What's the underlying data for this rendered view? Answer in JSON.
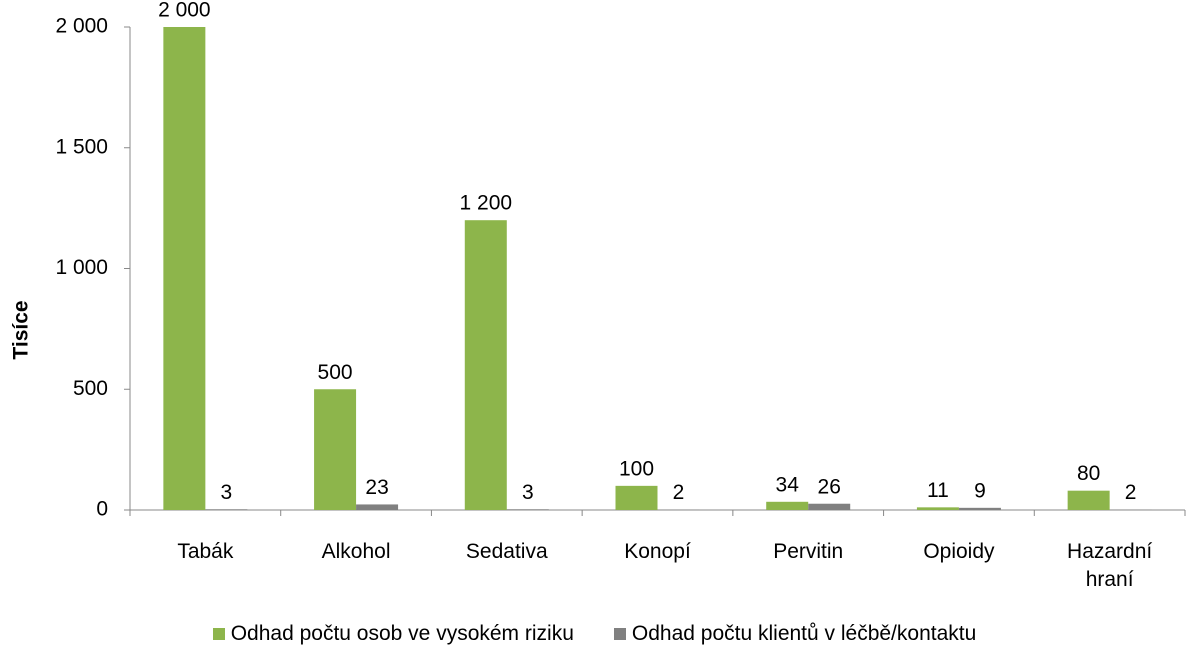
{
  "chart_data": {
    "type": "bar",
    "y_label": "Tisíce",
    "categories": [
      "Tabák",
      "Alkohol",
      "Sedativa",
      "Konopí",
      "Pervitin",
      "Opioidy",
      "Hazardní hraní"
    ],
    "series": [
      {
        "name": "Odhad počtu osob ve vysokém riziku",
        "color": "#8db54b",
        "values": [
          2000,
          500,
          1200,
          100,
          34,
          11,
          80
        ],
        "value_labels": [
          "2 000",
          "500",
          "1 200",
          "100",
          "34",
          "11",
          "80"
        ]
      },
      {
        "name": "Odhad počtu klientů v léčbě/kontaktu",
        "color": "#808080",
        "values": [
          3,
          23,
          3,
          2,
          26,
          9,
          2
        ]
      }
    ],
    "ylim": [
      0,
      2000
    ],
    "yticks": [
      0,
      500,
      {
        "value": 1000,
        "label": "1 000"
      },
      {
        "value": 1500,
        "label": "1 500"
      },
      {
        "value": 2000,
        "label": "2 000"
      }
    ],
    "legend": "bottom"
  }
}
